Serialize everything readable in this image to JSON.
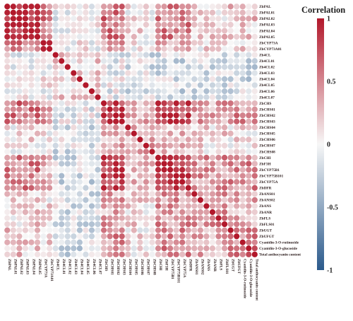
{
  "chart_data": {
    "type": "heatmap",
    "variables": [
      "ZbPAL",
      "ZbPAL01",
      "ZbPAL02",
      "ZbPAL03",
      "ZbPAL04",
      "ZbPAL05",
      "ZbCYP73A",
      "ZbCYP73A01",
      "Zb4CL",
      "Zb4CL01",
      "Zb4CL02",
      "Zb4CL03",
      "Zb4CL04",
      "Zb4CL05",
      "Zb4CL06",
      "Zb4CL07",
      "ZbCHS",
      "ZbCHS01",
      "ZbCHS02",
      "ZbCHS03",
      "ZbCHS04",
      "ZbCHS05",
      "ZbCHS06",
      "ZbCHS07",
      "ZbCHS08",
      "ZbCHI",
      "ZbF3H",
      "ZbCYP75B1",
      "ZbCYP75B101",
      "ZbCYP75A",
      "ZbDFR",
      "ZbANS01",
      "ZbANS02",
      "ZbANS",
      "ZbANR",
      "ZbFLS",
      "ZbFLS01",
      "ZbUGT",
      "ZbUFGT",
      "Cyanidin-3-O-rutinoside",
      "Cyanidin-3-O-glucoside",
      "Total anthocyanin content"
    ],
    "legend": {
      "title": "Correlation",
      "ticks": [
        "1",
        "0.5",
        "0",
        "-0.5",
        "-1"
      ],
      "tick_values": [
        1,
        0.5,
        0,
        -0.5,
        -1
      ],
      "colors": {
        "high": "#b2182b",
        "mid": "#f7f7f7",
        "low": "#2b5a8c"
      }
    },
    "value_range": [
      -1,
      1
    ],
    "layout": "full-matrix, circle markers, correlation coefficient per cell",
    "approximate_block_values": {
      "ZbPAL..ZbPAL05 (within)": 0.9,
      "ZbCHS02..ZbCHS03 with ZbCHI..ZbDFR": 0.8,
      "ZbCHI..ZbDFR (within)": 0.9,
      "Zb4CL01..Zb4CL07 with most genes": -0.2,
      "ZbCHS06..ZbCHS07 with most genes": -0.2
    }
  }
}
